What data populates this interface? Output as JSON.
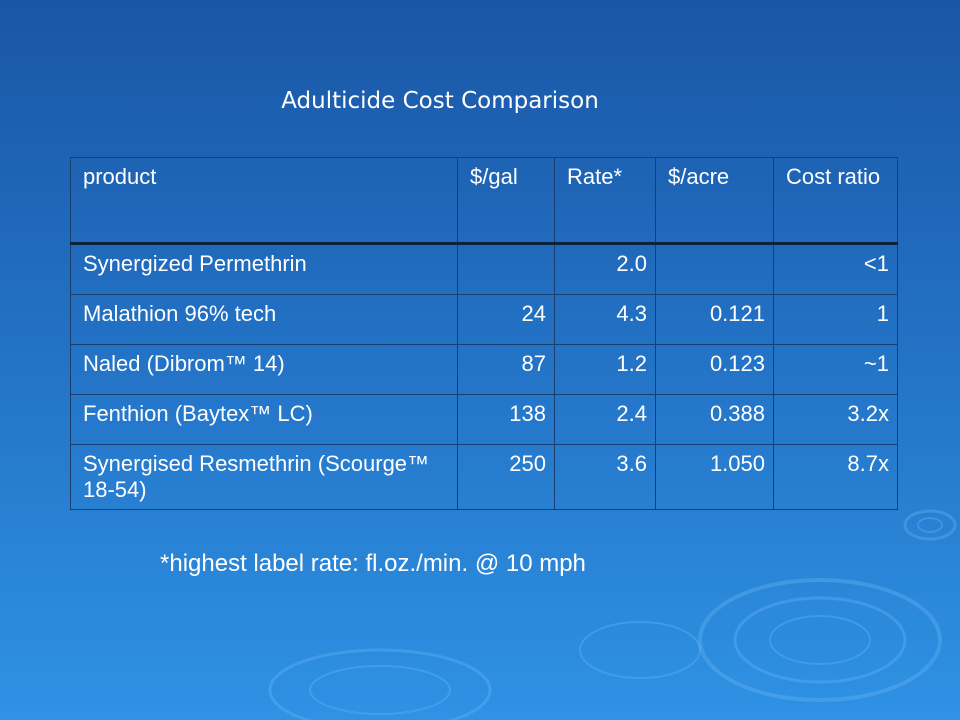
{
  "title": "Adulticide Cost Comparison",
  "table": {
    "header": [
      "product",
      "$/gal",
      "Rate*",
      "$/acre",
      "Cost ratio"
    ],
    "rows": [
      [
        "Synergized  Permethrin",
        null,
        "2.0",
        null,
        "<1"
      ],
      [
        "Malathion 96% tech",
        "24",
        "4.3",
        "0.121",
        "1"
      ],
      [
        "Naled (Dibrom™ 14)",
        "87",
        "1.2",
        "0.123",
        "~1"
      ],
      [
        "Fenthion (Baytex™  LC)",
        "138",
        "2.4",
        "0.388",
        "3.2x"
      ],
      [
        "Synergised Resmethrin (Scourge™ 18-54)",
        "250",
        "3.6",
        "1.050",
        "8.7x"
      ]
    ]
  },
  "footnote": "*highest label rate: fl.oz./min. @ 10 mph"
}
